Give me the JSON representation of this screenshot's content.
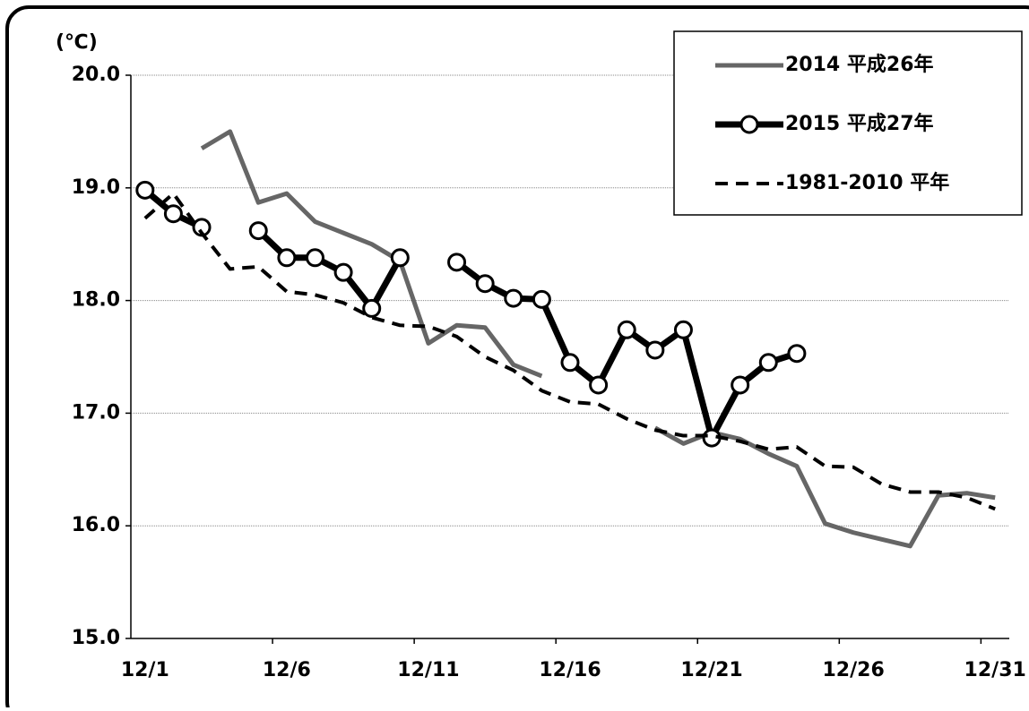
{
  "chart_data": {
    "type": "line",
    "y_unit": "(℃)",
    "categories": [
      "12/1",
      null,
      null,
      null,
      null,
      "12/6",
      null,
      null,
      null,
      null,
      "12/11",
      null,
      null,
      null,
      null,
      "12/16",
      null,
      null,
      null,
      null,
      "12/21",
      null,
      null,
      null,
      null,
      "12/26",
      null,
      null,
      null,
      null,
      "12/31"
    ],
    "series": [
      {
        "name": "2014 平成26年",
        "color": "#666666",
        "style": "solid",
        "marker": "none",
        "values": [
          null,
          null,
          19.35,
          19.5,
          18.87,
          18.95,
          18.7,
          18.6,
          18.5,
          18.35,
          17.62,
          17.78,
          17.76,
          17.43,
          17.33,
          null,
          null,
          null,
          16.87,
          16.73,
          16.83,
          16.77,
          16.64,
          16.53,
          16.02,
          15.94,
          15.88,
          15.82,
          16.27,
          16.29,
          16.25
        ]
      },
      {
        "name": "2015 平成27年",
        "color": "#000000",
        "style": "solid",
        "marker": "circle",
        "values": [
          18.98,
          18.77,
          18.65,
          null,
          18.62,
          18.38,
          18.38,
          18.25,
          17.93,
          18.38,
          null,
          18.34,
          18.15,
          18.02,
          18.01,
          17.45,
          17.25,
          17.74,
          17.56,
          17.74,
          16.78,
          17.25,
          17.45,
          17.53,
          null,
          null,
          null,
          null,
          null,
          null,
          null
        ]
      },
      {
        "name": "1981-2010 平年",
        "color": "#000000",
        "style": "dashed",
        "marker": "none",
        "values": [
          18.73,
          18.95,
          18.6,
          18.28,
          18.3,
          18.08,
          18.05,
          17.98,
          17.85,
          17.78,
          17.77,
          17.68,
          17.5,
          17.38,
          17.2,
          17.1,
          17.08,
          16.95,
          16.85,
          16.8,
          16.8,
          16.75,
          16.68,
          16.7,
          16.53,
          16.52,
          16.37,
          16.3,
          16.3,
          16.25,
          16.15
        ]
      }
    ],
    "ylim": [
      15,
      20
    ],
    "yticks": [
      {
        "value": 15,
        "label": "15.0"
      },
      {
        "value": 16,
        "label": "16.0"
      },
      {
        "value": 17,
        "label": "17.0"
      },
      {
        "value": 18,
        "label": "18.0"
      },
      {
        "value": 19,
        "label": "19.0"
      },
      {
        "value": 20,
        "label": "20.0"
      }
    ],
    "grid": true,
    "legend": "top-right"
  }
}
